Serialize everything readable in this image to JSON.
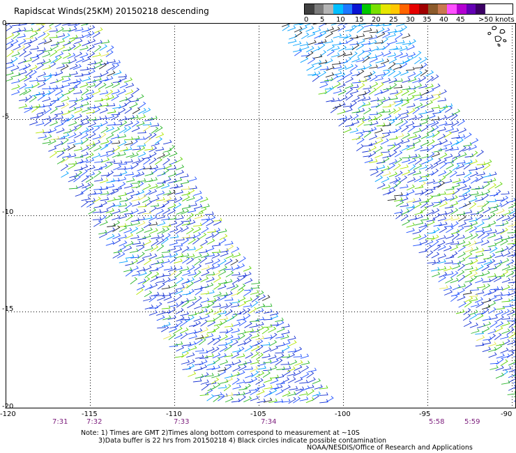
{
  "title": "Rapidscat Winds(25KM) 20150218 descending",
  "legend": {
    "colors": [
      "#404040",
      "#7c7c7c",
      "#b4b4b4",
      "#00bfff",
      "#1e78ff",
      "#0a14d2",
      "#00c800",
      "#78e000",
      "#e6e600",
      "#ffc800",
      "#ff6400",
      "#e60000",
      "#a00000",
      "#8b5a2b",
      "#c87850",
      "#ff50ff",
      "#b400d2",
      "#6400b4",
      "#3c0064"
    ],
    "labels": [
      "0",
      "5",
      "10",
      "15",
      "20",
      "25",
      "30",
      "35",
      "40",
      "45",
      ">50 knots"
    ]
  },
  "map": {
    "lon_range": [
      -120,
      -90
    ],
    "lat_range": [
      -20,
      0
    ],
    "lon_ticks": [
      "-120",
      "-115",
      "-110",
      "-105",
      "-100",
      "-95",
      "-90"
    ],
    "lat_ticks": [
      "0",
      "-5",
      "-10",
      "-15",
      "-20"
    ],
    "swath_times": [
      "7:31",
      "7:32",
      "7:33",
      "7:34",
      "5:58",
      "5:59"
    ],
    "barb_palette": [
      "#1430d2",
      "#1e50ff",
      "#00a0ff",
      "#28b428",
      "#5ad200",
      "#b4e600",
      "#e6e650",
      "#202020"
    ]
  },
  "notes": {
    "line1": "Note: 1) Times are GMT 2)Times along bottom correspond to measurement at ~10S",
    "line2": "3)Data buffer is 22 hrs from 20150218 4) Black circles indicate possible contamination"
  },
  "credit": "NOAA/NESDIS/Office of Research and Applications"
}
